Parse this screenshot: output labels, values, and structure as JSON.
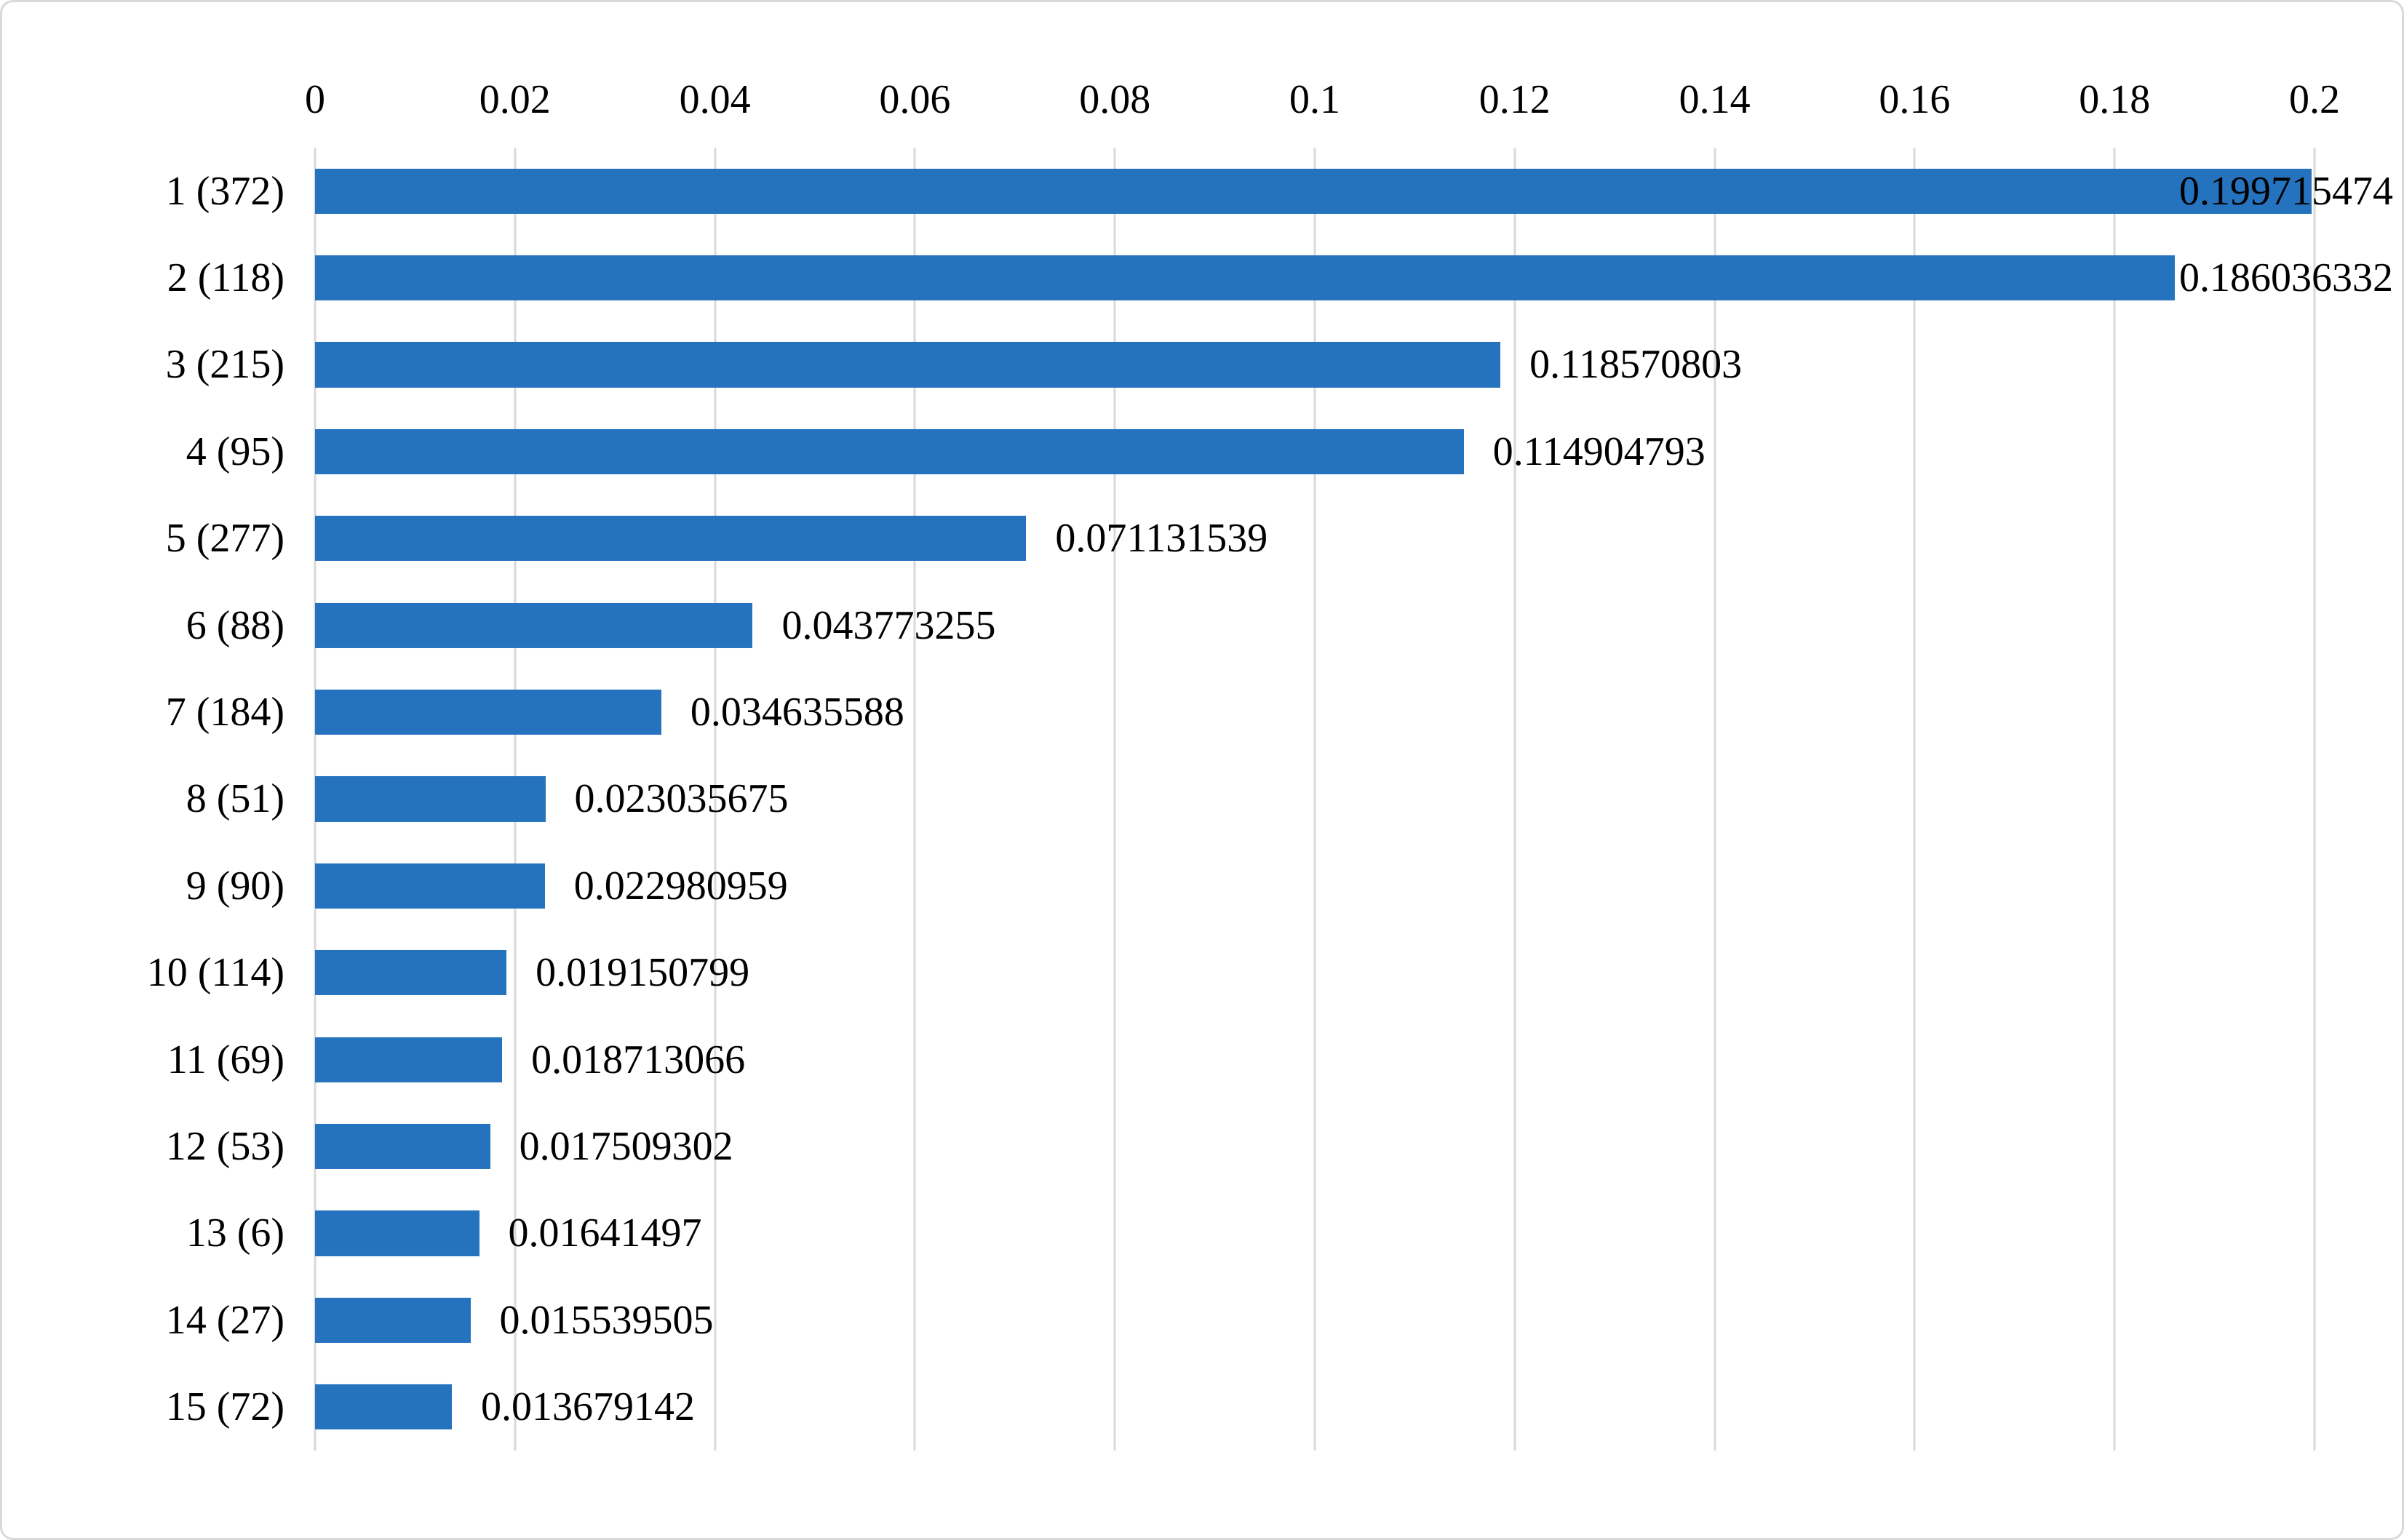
{
  "chart_data": {
    "type": "bar",
    "orientation": "horizontal",
    "title": "",
    "xlabel": "",
    "ylabel": "",
    "xlim": [
      0,
      0.2
    ],
    "x_ticks": [
      "0",
      "0.02",
      "0.04",
      "0.06",
      "0.08",
      "0.1",
      "0.12",
      "0.14",
      "0.16",
      "0.18",
      "0.2"
    ],
    "grid": "vertical",
    "legend": "none",
    "categories": [
      "1（372）",
      "2（118）",
      "3（215）",
      "4（95）",
      "5（277）",
      "6（88）",
      "7（184）",
      "8（51）",
      "9（90）",
      "10（114）",
      "11（69）",
      "12（53）",
      "13（6）",
      "14（27）",
      "15（72）"
    ],
    "values": [
      0.199715474,
      0.186036332,
      0.118570803,
      0.114904793,
      0.071131539,
      0.043773255,
      0.034635588,
      0.023035675,
      0.022980959,
      0.019150799,
      0.018713066,
      0.017509302,
      0.01641497,
      0.015539505,
      0.013679142
    ],
    "value_labels": [
      "0.199715474",
      "0.186036332",
      "0.118570803",
      "0.114904793",
      "0.071131539",
      "0.043773255",
      "0.034635588",
      "0.023035675",
      "0.022980959",
      "0.019150799",
      "0.018713066",
      "0.017509302",
      "0.01641497",
      "0.015539505",
      "0.013679142"
    ],
    "colors": {
      "bar": "#2573be",
      "gridline": "#d9d9d9",
      "text": "#000000",
      "border": "#d9d9d9"
    }
  }
}
